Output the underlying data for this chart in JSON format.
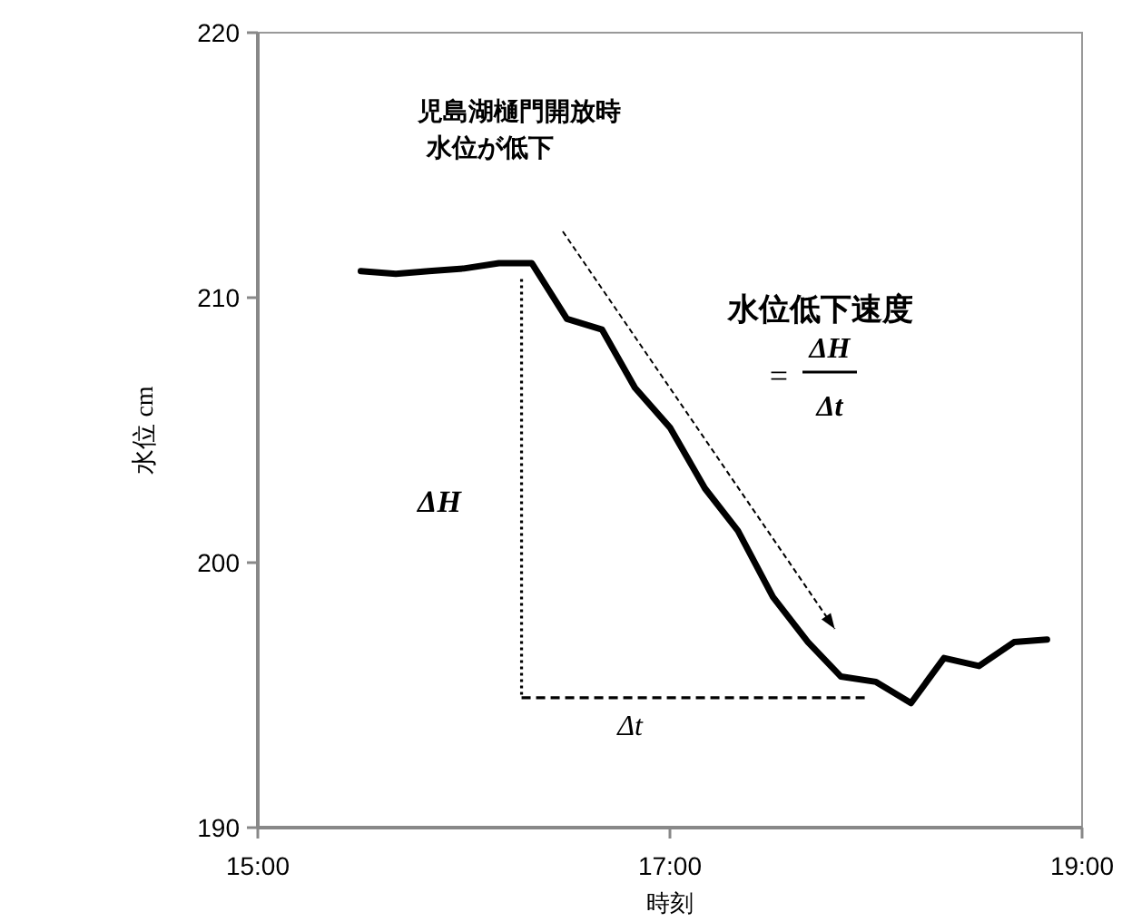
{
  "chart_data": {
    "type": "line",
    "xlabel": "時刻",
    "ylabel": "水位 cm",
    "xlim": [
      15,
      19
    ],
    "ylim": [
      190,
      220
    ],
    "xticks": [
      {
        "value": 15,
        "label": "15:00"
      },
      {
        "value": 17,
        "label": "17:00"
      },
      {
        "value": 19,
        "label": "19:00"
      }
    ],
    "yticks": [
      190,
      200,
      210,
      220
    ],
    "grid": false,
    "marker": "none",
    "annotations": [
      "児島湖樋門開放時",
      "水位が低下",
      "水位低下速度",
      "=",
      "ΔH",
      "Δt",
      "ΔH",
      "Δt"
    ],
    "series": [
      {
        "color": "#000000",
        "line_style": "solid",
        "x": [
          15.5,
          15.67,
          15.83,
          16.0,
          16.17,
          16.33,
          16.5,
          16.67,
          16.83,
          17.0,
          17.17,
          17.33,
          17.5,
          17.67,
          17.83,
          18.0,
          18.17,
          18.33,
          18.5,
          18.67,
          18.83
        ],
        "values": [
          211.0,
          210.9,
          211.0,
          211.1,
          211.3,
          211.3,
          209.2,
          208.8,
          206.6,
          205.1,
          202.8,
          201.2,
          198.7,
          197.0,
          195.7,
          195.5,
          194.7,
          196.4,
          196.1,
          197.0,
          197.1
        ]
      },
      {
        "color": "#000000",
        "line_style": "dotted",
        "x": [
          16.28,
          16.28
        ],
        "values": [
          210.7,
          194.9
        ]
      },
      {
        "color": "#000000",
        "line_style": "dashed",
        "x": [
          16.28,
          17.95
        ],
        "values": [
          194.9,
          194.9
        ]
      }
    ]
  }
}
